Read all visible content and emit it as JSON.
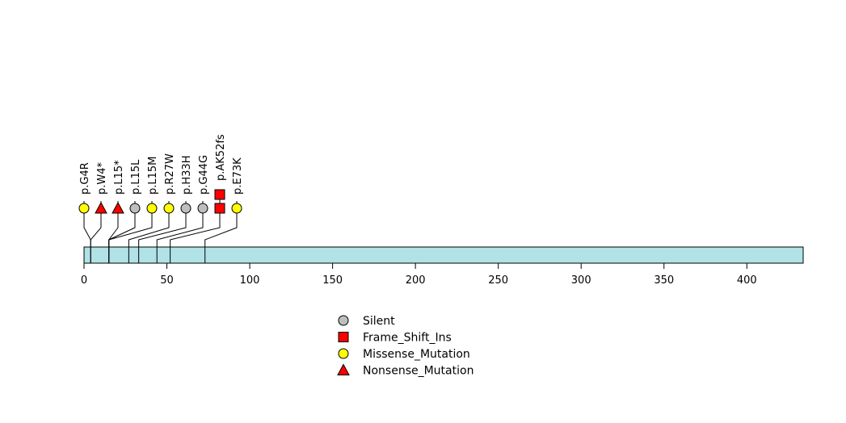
{
  "chart_data": {
    "type": "lollipop",
    "xlim": [
      0,
      434
    ],
    "x_ticks": [
      0,
      50,
      100,
      150,
      200,
      250,
      300,
      350,
      400
    ],
    "protein_length": 434,
    "mutations": [
      {
        "label": "p.G4R",
        "position": 4,
        "type": "Missense_Mutation",
        "count": 1
      },
      {
        "label": "p.W4*",
        "position": 4,
        "type": "Nonsense_Mutation",
        "count": 1
      },
      {
        "label": "p.L15*",
        "position": 15,
        "type": "Nonsense_Mutation",
        "count": 1
      },
      {
        "label": "p.L15L",
        "position": 15,
        "type": "Silent",
        "count": 1
      },
      {
        "label": "p.L15M",
        "position": 15,
        "type": "Missense_Mutation",
        "count": 1
      },
      {
        "label": "p.R27W",
        "position": 27,
        "type": "Missense_Mutation",
        "count": 1
      },
      {
        "label": "p.H33H",
        "position": 33,
        "type": "Silent",
        "count": 1
      },
      {
        "label": "p.G44G",
        "position": 44,
        "type": "Silent",
        "count": 1
      },
      {
        "label": "p.AK52fs",
        "position": 52,
        "type": "Frame_Shift_Ins",
        "count": 2
      },
      {
        "label": "p.E73K",
        "position": 73,
        "type": "Missense_Mutation",
        "count": 1
      }
    ],
    "legend": [
      {
        "label": "Silent",
        "type": "Silent"
      },
      {
        "label": "Frame_Shift_Ins",
        "type": "Frame_Shift_Ins"
      },
      {
        "label": "Missense_Mutation",
        "type": "Missense_Mutation"
      },
      {
        "label": "Nonsense_Mutation",
        "type": "Nonsense_Mutation"
      }
    ],
    "styles": {
      "Silent": {
        "shape": "circle",
        "color": "#bebebe"
      },
      "Frame_Shift_Ins": {
        "shape": "square",
        "color": "#ff0000"
      },
      "Missense_Mutation": {
        "shape": "circle",
        "color": "#ffff00"
      },
      "Nonsense_Mutation": {
        "shape": "triangle",
        "color": "#ff0000"
      }
    },
    "domain_color": "#b0e2e6"
  }
}
